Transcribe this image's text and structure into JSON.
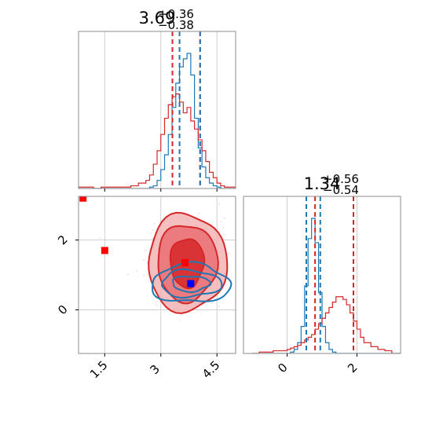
{
  "chart_data": [
    {
      "type": "histogram",
      "panel": "top-left marginal",
      "title": {
        "value": "3.69",
        "plus": "+0.36",
        "minus": "−0.38"
      },
      "xlim": [
        0.8,
        5.0
      ],
      "x_ticks": [
        1.5,
        3.0,
        4.5
      ],
      "bin_edges": [
        0.8,
        1.0,
        1.2,
        1.4,
        1.6,
        1.8,
        2.0,
        2.2,
        2.4,
        2.6,
        2.7,
        2.8,
        2.9,
        3.0,
        3.1,
        3.2,
        3.3,
        3.4,
        3.5,
        3.6,
        3.7,
        3.8,
        3.9,
        4.0,
        4.1,
        4.2,
        4.3,
        4.4,
        4.5,
        4.6,
        4.7,
        4.8,
        5.0
      ],
      "series": [
        {
          "color": "#1f77b4",
          "counts": [
            0,
            0,
            0,
            0,
            0,
            0,
            0,
            0,
            0,
            0,
            0.01,
            0.02,
            0.06,
            0.14,
            0.25,
            0.4,
            0.6,
            0.78,
            0.9,
            0.96,
            1.0,
            0.84,
            0.52,
            0.3,
            0.16,
            0.08,
            0.04,
            0.02,
            0.01,
            0,
            0,
            0
          ]
        },
        {
          "color": "#d62728",
          "counts": [
            0.01,
            0.01,
            0,
            0.01,
            0.01,
            0.01,
            0.01,
            0.02,
            0.04,
            0.06,
            0.1,
            0.18,
            0.28,
            0.4,
            0.52,
            0.62,
            0.68,
            0.7,
            0.64,
            0.56,
            0.6,
            0.5,
            0.44,
            0.36,
            0.28,
            0.2,
            0.12,
            0.08,
            0.04,
            0.02,
            0.01,
            0.01
          ]
        }
      ],
      "quantile_lines": [
        {
          "x": 3.31,
          "color": "#d62728"
        },
        {
          "x": 4.05,
          "color": "#d62728"
        },
        {
          "x": 3.5,
          "color": "#1f77b4"
        },
        {
          "x": 4.05,
          "color": "#1f77b4"
        }
      ]
    },
    {
      "type": "contour",
      "panel": "bottom-left 2D",
      "xlim": [
        0.8,
        5.0
      ],
      "ylim": [
        -1.25,
        3.25
      ],
      "x_ticks": [
        1.5,
        3.0,
        4.5
      ],
      "y_ticks": [
        0,
        2
      ],
      "grid": true,
      "series": [
        {
          "color": "#d62728",
          "center": [
            3.7,
            1.35
          ],
          "levels": [
            [
              0.45,
              0.7
            ],
            [
              0.8,
              1.1
            ],
            [
              1.05,
              1.4
            ]
          ]
        },
        {
          "color": "#1f77b4",
          "center": [
            3.8,
            0.75
          ],
          "levels": [
            [
              0.5,
              0.22
            ],
            [
              0.8,
              0.38
            ],
            [
              1.05,
              0.55
            ]
          ]
        }
      ],
      "markers": [
        {
          "x": 0.92,
          "y": 3.2,
          "color": "#ff0000"
        },
        {
          "x": 1.5,
          "y": 1.7,
          "color": "#ff0000"
        },
        {
          "x": 3.65,
          "y": 1.35,
          "color": "#ff0000"
        },
        {
          "x": 3.8,
          "y": 0.75,
          "color": "#0000ff"
        }
      ]
    },
    {
      "type": "histogram",
      "panel": "bottom-right marginal",
      "title": {
        "value": "1.34",
        "plus": "+0.56",
        "minus": "−0.54"
      },
      "xlim": [
        -1.25,
        3.25
      ],
      "x_ticks": [
        0,
        2
      ],
      "bin_edges": [
        -1.0,
        -0.8,
        -0.6,
        -0.4,
        -0.2,
        0.0,
        0.1,
        0.2,
        0.3,
        0.4,
        0.5,
        0.6,
        0.7,
        0.8,
        0.9,
        1.0,
        1.1,
        1.2,
        1.3,
        1.4,
        1.5,
        1.6,
        1.7,
        1.8,
        1.9,
        2.0,
        2.1,
        2.2,
        2.4,
        2.6,
        2.8,
        3.0,
        3.25
      ],
      "series": [
        {
          "color": "#1f77b4",
          "counts": [
            0,
            0,
            0,
            0,
            0,
            0,
            0.01,
            0.03,
            0.08,
            0.2,
            0.5,
            0.85,
            1.0,
            0.82,
            0.45,
            0.2,
            0.08,
            0.03,
            0.01,
            0,
            0,
            0,
            0,
            0,
            0,
            0,
            0,
            0,
            0,
            0,
            0,
            0
          ]
        },
        {
          "color": "#d62728",
          "counts": [
            0,
            0.01,
            0.01,
            0.02,
            0.02,
            0.03,
            0.04,
            0.05,
            0.06,
            0.08,
            0.1,
            0.12,
            0.14,
            0.18,
            0.22,
            0.26,
            0.3,
            0.34,
            0.38,
            0.42,
            0.42,
            0.4,
            0.36,
            0.3,
            0.24,
            0.18,
            0.12,
            0.08,
            0.05,
            0.03,
            0.02,
            0
          ]
        }
      ],
      "quantile_lines": [
        {
          "x": 0.8,
          "color": "#d62728"
        },
        {
          "x": 1.9,
          "color": "#d62728"
        },
        {
          "x": 0.55,
          "color": "#1f77b4"
        },
        {
          "x": 0.95,
          "color": "#1f77b4"
        }
      ]
    }
  ]
}
